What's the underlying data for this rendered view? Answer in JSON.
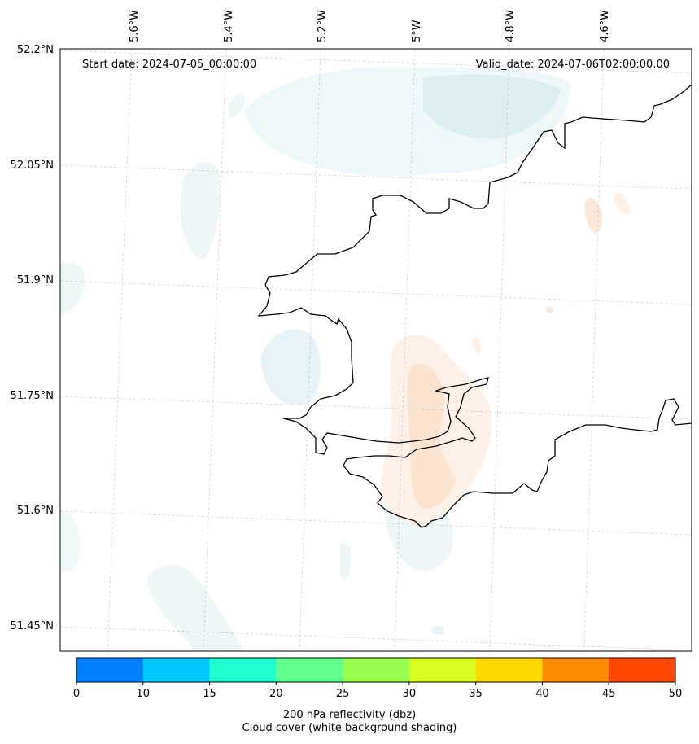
{
  "header": {
    "start_date": "Start date: 2024-07-05_00:00:00",
    "valid_date": "Valid_date: 2024-07-06T02:00:00.00"
  },
  "longitude_labels": [
    "5.6°W",
    "5.4°W",
    "5.2°W",
    "5°W",
    "4.8°W",
    "4.6°W"
  ],
  "latitude_labels": [
    "52.2°N",
    "52.05°N",
    "51.9°N",
    "51.75°N",
    "51.6°N",
    "51.45°N"
  ],
  "colorbar": {
    "ticks": [
      "0",
      "10",
      "15",
      "20",
      "25",
      "30",
      "35",
      "40",
      "45",
      "50"
    ],
    "colors": [
      "#0080ff",
      "#00c8ff",
      "#20ffd0",
      "#60ff90",
      "#98ff50",
      "#d8ff20",
      "#ffd800",
      "#ff8c00",
      "#ff4800"
    ],
    "label_line1": "200 hPa reflectivity (dbz)",
    "label_line2": "Cloud cover (white background shading)"
  }
}
